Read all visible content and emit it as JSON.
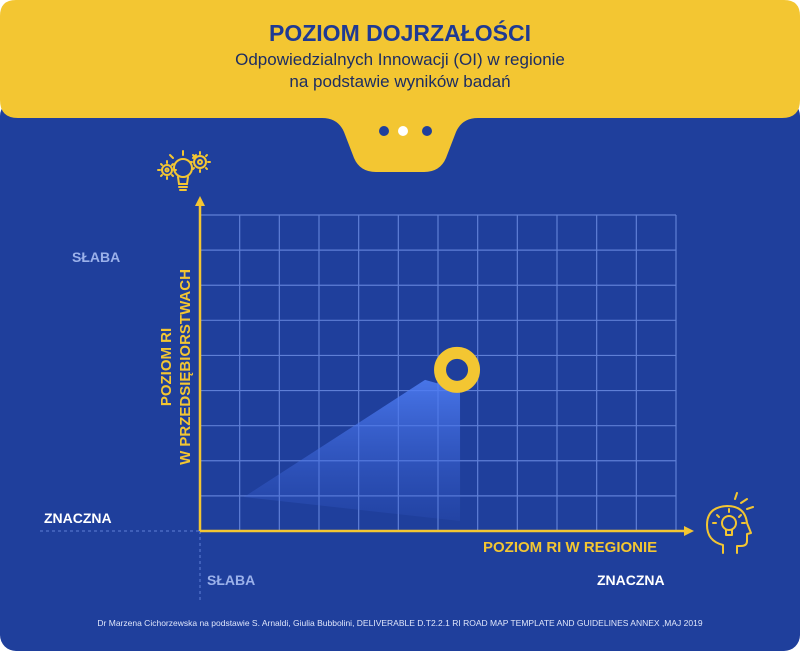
{
  "header": {
    "title": "POZIOM DOJRZAŁOŚCI",
    "subtitle_line1": "Odpowiedzialnych Innowacji (OI) w regionie",
    "subtitle_line2": "na podstawie wyników badań"
  },
  "axes": {
    "y_title_line1": "POZIOM RI",
    "y_title_line2": "W PRZEDSIĘBIORSTWACH",
    "x_title": "POZIOM RI W REGIONIE",
    "y_low_label": "SŁABA",
    "y_high_label": "ZNACZNA",
    "x_low_label": "SŁABA",
    "x_high_label": "ZNACZNA"
  },
  "marker": {
    "x_fraction": 0.54,
    "y_fraction": 0.51
  },
  "footnote": "Dr Marzena Cichorzewska na podstawie S. Arnaldi, Giulia Bubbolini, DELIVERABLE D.T2.2.1 RI ROAD MAP TEMPLATE AND GUIDELINES ANNEX ,MAJ 2019",
  "icons": [
    "gears-lightbulb-icon",
    "head-lightbulb-icon"
  ],
  "colors": {
    "panel_blue": "#1f3f9c",
    "header_yellow": "#f3c632",
    "grid_line": "#5f7fd6",
    "title_blue": "#1f3a93"
  }
}
